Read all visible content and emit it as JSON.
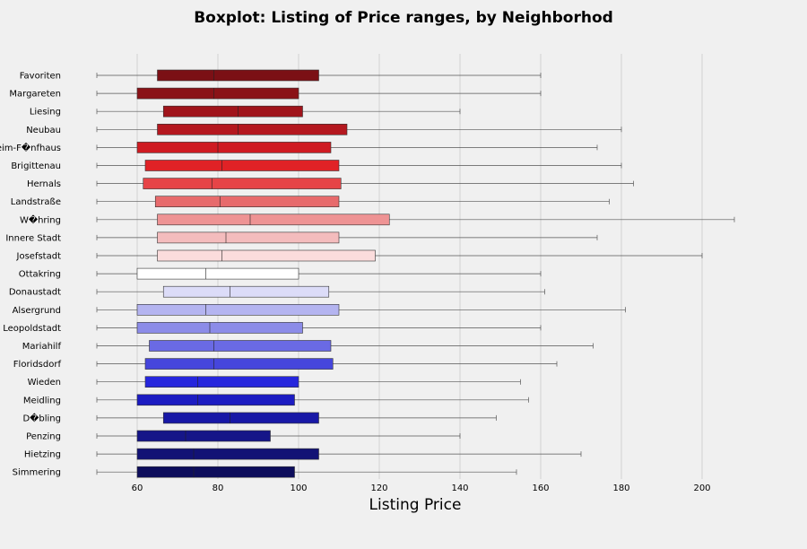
{
  "chart_data": {
    "type": "boxplot",
    "orientation": "horizontal",
    "title": "Boxplot: Listing of Price ranges, by Neighborhod",
    "xlabel": "Listing Price",
    "ylabel": "",
    "xlim": [
      50,
      210
    ],
    "xticks": [
      60,
      80,
      100,
      120,
      140,
      160,
      180,
      200
    ],
    "grid": "vertical",
    "categories": [
      "Favoriten",
      "Margareten",
      "Liesing",
      "Neubau",
      "Rudolfsheim-F�nfhaus",
      "Brigittenau",
      "Hernals",
      "Landstraße",
      "W�hring",
      "Innere Stadt",
      "Josefstadt",
      "Ottakring",
      "Donaustadt",
      "Alsergrund",
      "Leopoldstadt",
      "Mariahilf",
      "Floridsdorf",
      "Wieden",
      "Meidling",
      "D�bling",
      "Penzing",
      "Hietzing",
      "Simmering"
    ],
    "boxes": [
      {
        "min": 50,
        "q1": 65,
        "median": 79,
        "q3": 105,
        "max": 160,
        "color": "#7b1015"
      },
      {
        "min": 50,
        "q1": 60,
        "median": 79,
        "q3": 100,
        "max": 160,
        "color": "#8a1217"
      },
      {
        "min": 50,
        "q1": 66.5,
        "median": 85,
        "q3": 101,
        "max": 140,
        "color": "#a0141b"
      },
      {
        "min": 50,
        "q1": 65,
        "median": 85,
        "q3": 112,
        "max": 180,
        "color": "#b4181f"
      },
      {
        "min": 50,
        "q1": 60,
        "median": 80,
        "q3": 108,
        "max": 174,
        "color": "#cf1b22"
      },
      {
        "min": 50,
        "q1": 62,
        "median": 81,
        "q3": 110,
        "max": 180,
        "color": "#e02226"
      },
      {
        "min": 50,
        "q1": 61.5,
        "median": 78.5,
        "q3": 110.5,
        "max": 183,
        "color": "#e64447"
      },
      {
        "min": 50,
        "q1": 64.5,
        "median": 80.5,
        "q3": 110,
        "max": 177,
        "color": "#e76a6c"
      },
      {
        "min": 50,
        "q1": 65,
        "median": 88,
        "q3": 122.5,
        "max": 208,
        "color": "#ee9394"
      },
      {
        "min": 50,
        "q1": 65,
        "median": 82,
        "q3": 110,
        "max": 174,
        "color": "#f4bcbd"
      },
      {
        "min": 50,
        "q1": 65,
        "median": 81,
        "q3": 119,
        "max": 200,
        "color": "#fbdcdc"
      },
      {
        "min": 50,
        "q1": 60,
        "median": 77,
        "q3": 100,
        "max": 160,
        "color": "#ffffff"
      },
      {
        "min": 50,
        "q1": 66.5,
        "median": 83,
        "q3": 107.5,
        "max": 161,
        "color": "#dcdcf8"
      },
      {
        "min": 50,
        "q1": 60,
        "median": 77,
        "q3": 110,
        "max": 181,
        "color": "#b4b4f0"
      },
      {
        "min": 50,
        "q1": 60,
        "median": 78,
        "q3": 101,
        "max": 160,
        "color": "#8c8ce8"
      },
      {
        "min": 50,
        "q1": 63,
        "median": 79,
        "q3": 108,
        "max": 173,
        "color": "#6a6ae4"
      },
      {
        "min": 50,
        "q1": 62,
        "median": 79,
        "q3": 108.5,
        "max": 164,
        "color": "#4646dc"
      },
      {
        "min": 50,
        "q1": 62,
        "median": 75,
        "q3": 100,
        "max": 155,
        "color": "#2626dd"
      },
      {
        "min": 50,
        "q1": 60,
        "median": 75,
        "q3": 99,
        "max": 157,
        "color": "#1c1cc2"
      },
      {
        "min": 50,
        "q1": 66.5,
        "median": 83,
        "q3": 105,
        "max": 149,
        "color": "#1818a6"
      },
      {
        "min": 50,
        "q1": 60,
        "median": 72,
        "q3": 93,
        "max": 140,
        "color": "#151588"
      },
      {
        "min": 50,
        "q1": 60,
        "median": 74,
        "q3": 105,
        "max": 170,
        "color": "#121275"
      },
      {
        "min": 50,
        "q1": 60,
        "median": 74,
        "q3": 99,
        "max": 154,
        "color": "#0e0e5c"
      }
    ]
  }
}
